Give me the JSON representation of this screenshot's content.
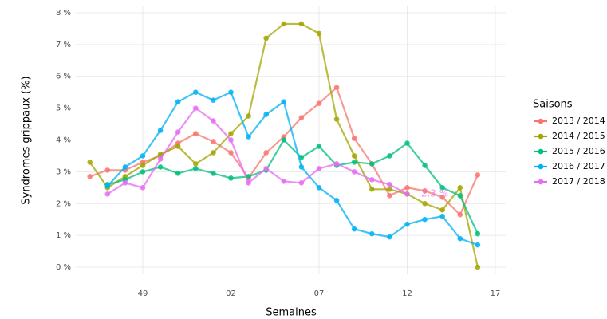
{
  "chart_data": {
    "type": "line",
    "x_label": "Semaines",
    "y_label": "Syndromes grippaux (%)",
    "legend_title": "Saisons",
    "legend_position": "right",
    "grid": true,
    "categories": [
      null,
      null,
      null,
      "49",
      null,
      null,
      null,
      null,
      "02",
      null,
      null,
      null,
      null,
      "07",
      null,
      null,
      null,
      null,
      "12",
      null,
      null,
      null,
      null,
      "17"
    ],
    "ylim": [
      -0.2,
      8.2
    ],
    "yticks": [
      {
        "value": 0,
        "label": "0 %"
      },
      {
        "value": 1,
        "label": "1 %"
      },
      {
        "value": 2,
        "label": "2 %"
      },
      {
        "value": 3,
        "label": "3 %"
      },
      {
        "value": 4,
        "label": "4 %"
      },
      {
        "value": 5,
        "label": "5 %"
      },
      {
        "value": 6,
        "label": "6 %"
      },
      {
        "value": 7,
        "label": "7 %"
      },
      {
        "value": 8,
        "label": "8 %"
      }
    ],
    "series": [
      {
        "name": "2013 / 2014",
        "color": "#F8766D",
        "values": [
          2.85,
          3.05,
          3.05,
          3.3,
          3.5,
          3.9,
          4.2,
          3.95,
          3.6,
          2.8,
          3.6,
          4.1,
          4.7,
          5.15,
          5.65,
          4.05,
          3.25,
          2.25,
          2.5,
          2.4,
          2.2,
          1.65,
          2.9,
          null
        ]
      },
      {
        "name": "2014 / 2015",
        "color": "#A3A500",
        "values": [
          3.3,
          2.5,
          2.85,
          3.2,
          3.55,
          3.8,
          3.25,
          3.6,
          4.2,
          4.75,
          7.2,
          7.65,
          7.65,
          7.35,
          4.65,
          3.5,
          2.45,
          2.45,
          2.3,
          2.0,
          1.8,
          2.5,
          0,
          null
        ]
      },
      {
        "name": "2015 / 2016",
        "color": "#00BF7D",
        "values": [
          null,
          2.6,
          2.75,
          3.0,
          3.15,
          2.95,
          3.1,
          2.95,
          2.8,
          2.85,
          3.05,
          4.0,
          3.45,
          3.8,
          3.2,
          3.3,
          3.25,
          3.5,
          3.9,
          3.2,
          2.5,
          2.25,
          1.05,
          null
        ]
      },
      {
        "name": "2016 / 2017",
        "color": "#00B0F6",
        "values": [
          null,
          2.55,
          3.15,
          3.5,
          4.3,
          5.2,
          5.5,
          5.25,
          5.5,
          4.1,
          4.8,
          5.2,
          3.15,
          2.5,
          2.1,
          1.2,
          1.05,
          0.95,
          1.35,
          1.5,
          1.6,
          0.9,
          0.7,
          null
        ]
      },
      {
        "name": "2017 / 2018",
        "color": "#E76BF3",
        "values": [
          null,
          2.3,
          2.65,
          2.5,
          3.4,
          4.25,
          5.0,
          4.6,
          4.0,
          2.65,
          3.1,
          2.7,
          2.65,
          3.1,
          3.25,
          3.0,
          2.75,
          2.6,
          2.3,
          null,
          null,
          null,
          null,
          null
        ]
      }
    ],
    "annotation": {
      "text": "2.3 %",
      "color": "#E76BF3"
    }
  }
}
